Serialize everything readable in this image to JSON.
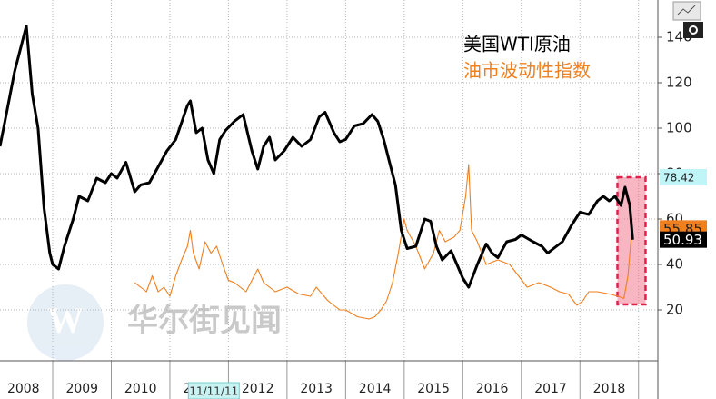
{
  "chart_data": {
    "type": "line",
    "series": [
      {
        "name": "美国WTI原油",
        "color": "#000000",
        "x": [
          2008.1,
          2008.2,
          2008.35,
          2008.5,
          2008.55,
          2008.65,
          2008.75,
          2008.85,
          2008.95,
          2009.0,
          2009.1,
          2009.2,
          2009.35,
          2009.45,
          2009.6,
          2009.75,
          2009.9,
          2010.0,
          2010.1,
          2010.25,
          2010.4,
          2010.5,
          2010.65,
          2010.8,
          2010.95,
          2011.1,
          2011.3,
          2011.35,
          2011.45,
          2011.55,
          2011.65,
          2011.75,
          2011.85,
          2011.95,
          2012.1,
          2012.25,
          2012.4,
          2012.5,
          2012.6,
          2012.7,
          2012.8,
          2012.95,
          2013.1,
          2013.25,
          2013.4,
          2013.55,
          2013.65,
          2013.8,
          2013.9,
          2014.0,
          2014.15,
          2014.3,
          2014.45,
          2014.55,
          2014.65,
          2014.75,
          2014.85,
          2014.95,
          2015.05,
          2015.2,
          2015.35,
          2015.45,
          2015.55,
          2015.65,
          2015.8,
          2015.9,
          2016.0,
          2016.1,
          2016.25,
          2016.4,
          2016.5,
          2016.6,
          2016.75,
          2016.9,
          2017.0,
          2017.2,
          2017.35,
          2017.45,
          2017.55,
          2017.7,
          2017.85,
          2018.0,
          2018.15,
          2018.3,
          2018.4,
          2018.5,
          2018.6,
          2018.7,
          2018.77,
          2018.85,
          2018.9
        ],
        "values": [
          92,
          105,
          125,
          140,
          145,
          115,
          100,
          65,
          45,
          40,
          38,
          48,
          60,
          70,
          68,
          78,
          76,
          80,
          78,
          85,
          72,
          75,
          76,
          83,
          90,
          95,
          110,
          112,
          98,
          100,
          86,
          80,
          95,
          99,
          103,
          106,
          90,
          82,
          92,
          96,
          86,
          90,
          96,
          92,
          95,
          105,
          107,
          98,
          94,
          95,
          101,
          102,
          106,
          103,
          95,
          85,
          75,
          55,
          47,
          48,
          60,
          59,
          48,
          42,
          46,
          40,
          34,
          30,
          40,
          49,
          45,
          43,
          50,
          51,
          53,
          50,
          48,
          45,
          47,
          50,
          57,
          63,
          62,
          68,
          70,
          68,
          70,
          66,
          74,
          66,
          50.93
        ]
      },
      {
        "name": "油市波动性指数",
        "color": "#f07f1e",
        "x": [
          2010.4,
          2010.5,
          2010.6,
          2010.7,
          2010.8,
          2010.9,
          2011.0,
          2011.1,
          2011.2,
          2011.3,
          2011.35,
          2011.4,
          2011.5,
          2011.6,
          2011.7,
          2011.8,
          2011.9,
          2012.0,
          2012.1,
          2012.3,
          2012.4,
          2012.5,
          2012.6,
          2012.8,
          2013.0,
          2013.2,
          2013.4,
          2013.5,
          2013.7,
          2013.9,
          2014.0,
          2014.2,
          2014.4,
          2014.5,
          2014.6,
          2014.7,
          2014.8,
          2014.9,
          2015.0,
          2015.05,
          2015.2,
          2015.35,
          2015.5,
          2015.6,
          2015.7,
          2015.85,
          2015.95,
          2016.05,
          2016.1,
          2016.15,
          2016.25,
          2016.4,
          2016.6,
          2016.8,
          2016.95,
          2017.1,
          2017.3,
          2017.5,
          2017.65,
          2017.8,
          2017.95,
          2018.05,
          2018.15,
          2018.3,
          2018.5,
          2018.65,
          2018.75,
          2018.82,
          2018.87,
          2018.9
        ],
        "values": [
          32,
          30,
          28,
          35,
          28,
          30,
          26,
          35,
          42,
          48,
          55,
          45,
          38,
          50,
          45,
          48,
          40,
          33,
          32,
          28,
          33,
          38,
          32,
          28,
          30,
          27,
          26,
          30,
          24,
          20,
          20,
          17,
          16,
          17,
          20,
          24,
          32,
          45,
          60,
          55,
          48,
          38,
          45,
          55,
          50,
          52,
          55,
          70,
          84,
          55,
          50,
          40,
          42,
          40,
          35,
          30,
          32,
          30,
          28,
          27,
          22,
          24,
          28,
          28,
          27,
          26,
          25,
          35,
          50,
          55.85
        ]
      }
    ],
    "xlim": [
      2008.1,
      2019.33
    ],
    "xticks": [
      {
        "value": 2008.5,
        "label": "2008"
      },
      {
        "value": 2009.5,
        "label": "2009"
      },
      {
        "value": 2010.5,
        "label": "2010"
      },
      {
        "value": 2011.5,
        "label": "2011"
      },
      {
        "value": 2012.5,
        "label": "2012"
      },
      {
        "value": 2013.5,
        "label": "2013"
      },
      {
        "value": 2014.5,
        "label": "2014"
      },
      {
        "value": 2015.5,
        "label": "2015"
      },
      {
        "value": 2016.5,
        "label": "2016"
      },
      {
        "value": 2017.5,
        "label": "2017"
      },
      {
        "value": 2018.5,
        "label": "2018"
      }
    ],
    "xgrid": [
      2009,
      2010,
      2011,
      2012,
      2013,
      2014,
      2015,
      2016,
      2017,
      2018,
      2019
    ],
    "ylim": [
      -2.4,
      156.4
    ],
    "yticks": [
      20,
      40,
      60,
      80,
      100,
      120,
      140
    ],
    "grid": true,
    "value_tags": [
      78.42,
      55.85,
      50.93
    ],
    "value_tag_colors": [
      "#bff5f7",
      "#f07f1e",
      "#000000"
    ],
    "highlight_box": {
      "x": [
        2018.64,
        2019.12
      ],
      "y": [
        22.4,
        78.4
      ]
    },
    "cursor_label": "11/11/11",
    "cursor_x": 2011.75,
    "watermark": "华尔街见闻"
  }
}
